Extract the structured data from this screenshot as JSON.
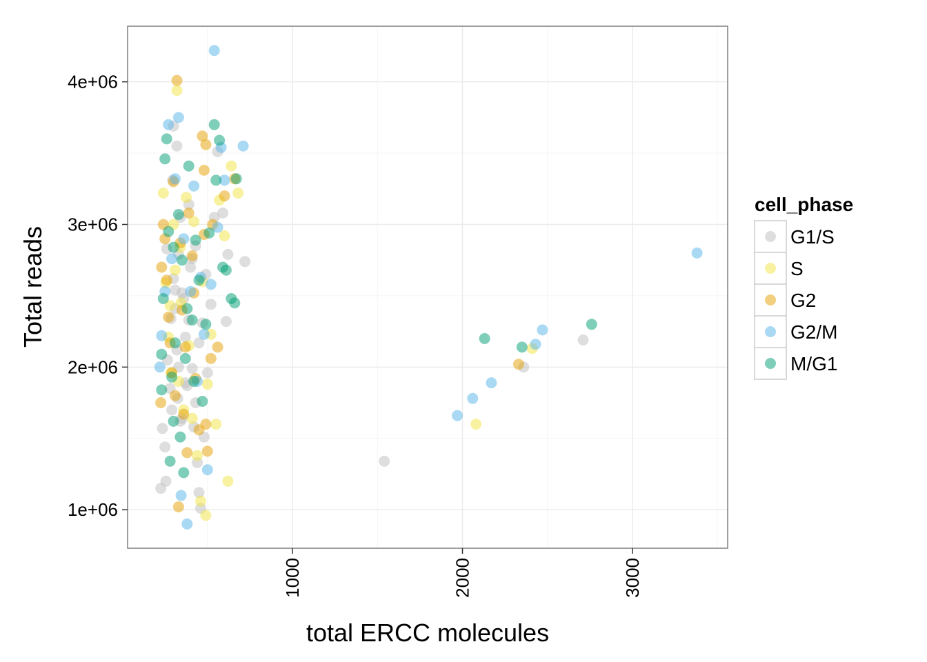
{
  "chart_data": {
    "type": "scatter",
    "title": "",
    "xlabel": "total ERCC molecules",
    "ylabel": "Total reads",
    "xlim": [
      30,
      3560
    ],
    "ylim": [
      730000,
      4390000
    ],
    "x_ticks": [
      1000,
      2000,
      3000
    ],
    "x_tick_labels": [
      "1000",
      "2000",
      "3000"
    ],
    "y_ticks": [
      1000000,
      2000000,
      3000000,
      4000000
    ],
    "y_tick_labels": [
      "1e+06",
      "2e+06",
      "3e+06",
      "4e+06"
    ],
    "grid": true,
    "legend": {
      "title": "cell_phase",
      "placement": "right"
    },
    "series": [
      {
        "name": "G1/S",
        "color": "#bdbdbd",
        "points": [
          [
            225,
            1150000
          ],
          [
            235,
            1570000
          ],
          [
            250,
            1440000
          ],
          [
            255,
            1200000
          ],
          [
            265,
            2050000
          ],
          [
            285,
            2340000
          ],
          [
            295,
            3310000
          ],
          [
            300,
            3690000
          ],
          [
            310,
            2540000
          ],
          [
            320,
            3550000
          ],
          [
            325,
            1780000
          ],
          [
            330,
            2790000
          ],
          [
            340,
            3050000
          ],
          [
            350,
            1640000
          ],
          [
            360,
            2480000
          ],
          [
            370,
            2210000
          ],
          [
            380,
            1870000
          ],
          [
            390,
            3140000
          ],
          [
            400,
            2700000
          ],
          [
            410,
            1990000
          ],
          [
            420,
            1580000
          ],
          [
            430,
            2850000
          ],
          [
            440,
            1330000
          ],
          [
            450,
            1120000
          ],
          [
            460,
            1010000
          ],
          [
            470,
            2310000
          ],
          [
            480,
            1510000
          ],
          [
            490,
            2650000
          ],
          [
            500,
            1960000
          ],
          [
            520,
            2440000
          ],
          [
            540,
            3050000
          ],
          [
            560,
            3510000
          ],
          [
            590,
            3080000
          ],
          [
            610,
            2320000
          ],
          [
            620,
            2790000
          ],
          [
            720,
            2740000
          ],
          [
            280,
            1850000
          ],
          [
            300,
            2620000
          ],
          [
            320,
            2120000
          ],
          [
            340,
            1620000
          ],
          [
            260,
            2830000
          ],
          [
            290,
            1700000
          ],
          [
            310,
            2410000
          ],
          [
            330,
            2000000
          ],
          [
            350,
            2520000
          ],
          [
            370,
            1890000
          ],
          [
            390,
            2330000
          ],
          [
            410,
            2760000
          ],
          [
            430,
            1750000
          ],
          [
            450,
            2170000
          ],
          [
            1540,
            1340000
          ],
          [
            2360,
            2000000
          ],
          [
            2710,
            2190000
          ]
        ]
      },
      {
        "name": "S",
        "color": "#f0e442",
        "points": [
          [
            240,
            3220000
          ],
          [
            255,
            2590000
          ],
          [
            270,
            2210000
          ],
          [
            285,
            1960000
          ],
          [
            300,
            3000000
          ],
          [
            320,
            3940000
          ],
          [
            330,
            1900000
          ],
          [
            345,
            2450000
          ],
          [
            360,
            1700000
          ],
          [
            375,
            3190000
          ],
          [
            390,
            2150000
          ],
          [
            410,
            1640000
          ],
          [
            420,
            3020000
          ],
          [
            440,
            1380000
          ],
          [
            460,
            1060000
          ],
          [
            470,
            2600000
          ],
          [
            490,
            960000
          ],
          [
            500,
            1880000
          ],
          [
            520,
            2230000
          ],
          [
            550,
            1600000
          ],
          [
            570,
            3170000
          ],
          [
            600,
            2920000
          ],
          [
            620,
            1200000
          ],
          [
            640,
            3410000
          ],
          [
            680,
            3220000
          ],
          [
            310,
            2680000
          ],
          [
            340,
            2840000
          ],
          [
            280,
            2430000
          ],
          [
            2080,
            1600000
          ],
          [
            2410,
            2130000
          ]
        ]
      },
      {
        "name": "G2",
        "color": "#e69f00",
        "points": [
          [
            225,
            1750000
          ],
          [
            230,
            2700000
          ],
          [
            240,
            3000000
          ],
          [
            250,
            2900000
          ],
          [
            260,
            2610000
          ],
          [
            270,
            2350000
          ],
          [
            280,
            2170000
          ],
          [
            290,
            1960000
          ],
          [
            300,
            3300000
          ],
          [
            310,
            1800000
          ],
          [
            320,
            4010000
          ],
          [
            330,
            1020000
          ],
          [
            340,
            2870000
          ],
          [
            350,
            2400000
          ],
          [
            360,
            1670000
          ],
          [
            370,
            2140000
          ],
          [
            380,
            1400000
          ],
          [
            390,
            3080000
          ],
          [
            410,
            2780000
          ],
          [
            420,
            2520000
          ],
          [
            430,
            1920000
          ],
          [
            450,
            1560000
          ],
          [
            470,
            3620000
          ],
          [
            480,
            2930000
          ],
          [
            490,
            3560000
          ],
          [
            500,
            1410000
          ],
          [
            520,
            2060000
          ],
          [
            530,
            3000000
          ],
          [
            560,
            2140000
          ],
          [
            600,
            3200000
          ],
          [
            660,
            3320000
          ],
          [
            480,
            3380000
          ],
          [
            490,
            1600000
          ],
          [
            2330,
            2020000
          ]
        ]
      },
      {
        "name": "G2/M",
        "color": "#56b4e9",
        "points": [
          [
            220,
            2000000
          ],
          [
            230,
            2220000
          ],
          [
            250,
            2530000
          ],
          [
            270,
            3700000
          ],
          [
            290,
            2760000
          ],
          [
            310,
            3320000
          ],
          [
            330,
            3750000
          ],
          [
            345,
            1100000
          ],
          [
            360,
            2900000
          ],
          [
            380,
            900000
          ],
          [
            400,
            2530000
          ],
          [
            420,
            3270000
          ],
          [
            440,
            1900000
          ],
          [
            460,
            2630000
          ],
          [
            480,
            2230000
          ],
          [
            500,
            1280000
          ],
          [
            520,
            2580000
          ],
          [
            540,
            4220000
          ],
          [
            560,
            2980000
          ],
          [
            580,
            3540000
          ],
          [
            600,
            3310000
          ],
          [
            710,
            3550000
          ],
          [
            1970,
            1660000
          ],
          [
            2060,
            1780000
          ],
          [
            2170,
            1890000
          ],
          [
            2430,
            2160000
          ],
          [
            2470,
            2260000
          ],
          [
            3380,
            2800000
          ]
        ]
      },
      {
        "name": "M/G1",
        "color": "#009e73",
        "points": [
          [
            230,
            2090000
          ],
          [
            240,
            2480000
          ],
          [
            250,
            3460000
          ],
          [
            260,
            3600000
          ],
          [
            270,
            2950000
          ],
          [
            280,
            1340000
          ],
          [
            290,
            1930000
          ],
          [
            300,
            2840000
          ],
          [
            310,
            2170000
          ],
          [
            330,
            3070000
          ],
          [
            340,
            1510000
          ],
          [
            350,
            2750000
          ],
          [
            360,
            1260000
          ],
          [
            370,
            2060000
          ],
          [
            380,
            2410000
          ],
          [
            390,
            3410000
          ],
          [
            410,
            2330000
          ],
          [
            420,
            1900000
          ],
          [
            430,
            2890000
          ],
          [
            450,
            2610000
          ],
          [
            470,
            1760000
          ],
          [
            490,
            2300000
          ],
          [
            510,
            2940000
          ],
          [
            540,
            3700000
          ],
          [
            550,
            3310000
          ],
          [
            570,
            3590000
          ],
          [
            590,
            2700000
          ],
          [
            610,
            2680000
          ],
          [
            640,
            2480000
          ],
          [
            660,
            2450000
          ],
          [
            670,
            3320000
          ],
          [
            230,
            1840000
          ],
          [
            300,
            1620000
          ],
          [
            2130,
            2200000
          ],
          [
            2350,
            2140000
          ],
          [
            2760,
            2300000
          ]
        ]
      }
    ]
  }
}
